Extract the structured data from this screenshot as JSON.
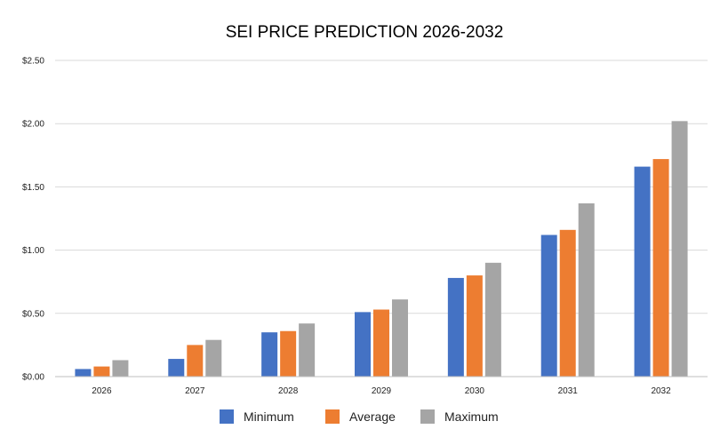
{
  "chart_data": {
    "type": "bar",
    "title": "SEI PRICE PREDICTION 2026-2032",
    "xlabel": "",
    "ylabel": "",
    "categories": [
      "2026",
      "2027",
      "2028",
      "2029",
      "2030",
      "2031",
      "2032"
    ],
    "series": [
      {
        "name": "Minimum",
        "color": "#4472C4",
        "values": [
          0.06,
          0.14,
          0.35,
          0.51,
          0.78,
          1.12,
          1.66
        ]
      },
      {
        "name": "Average",
        "color": "#ED7D31",
        "values": [
          0.08,
          0.25,
          0.36,
          0.53,
          0.8,
          1.16,
          1.72
        ]
      },
      {
        "name": "Maximum",
        "color": "#A5A5A5",
        "values": [
          0.13,
          0.29,
          0.42,
          0.61,
          0.9,
          1.37,
          2.02
        ]
      }
    ],
    "ylim": [
      0,
      2.5
    ],
    "yticks": [
      0,
      0.5,
      1.0,
      1.5,
      2.0,
      2.5
    ],
    "ytick_labels": [
      "$0.00",
      "$0.50",
      "$1.00",
      "$1.50",
      "$2.00",
      "$2.50"
    ],
    "grid": true,
    "legend_position": "bottom"
  }
}
